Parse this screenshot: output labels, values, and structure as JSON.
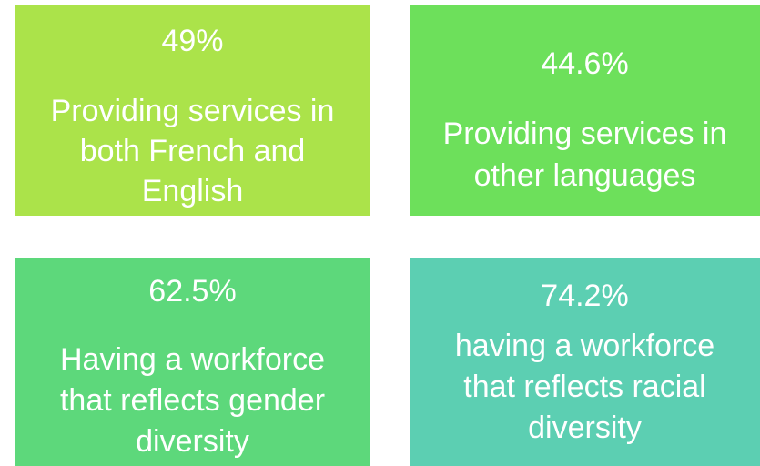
{
  "tiles": [
    {
      "value": "49%",
      "lines": [
        "Providing services in",
        "both French and",
        "English"
      ]
    },
    {
      "value": "44.6%",
      "lines": [
        "Providing services in",
        "other languages"
      ]
    },
    {
      "value": "62.5%",
      "lines": [
        "Having a workforce",
        "that reflects gender",
        "diversity"
      ]
    },
    {
      "value": "74.2%",
      "lines": [
        "having a workforce",
        "that reflects racial",
        "diversity"
      ]
    }
  ]
}
